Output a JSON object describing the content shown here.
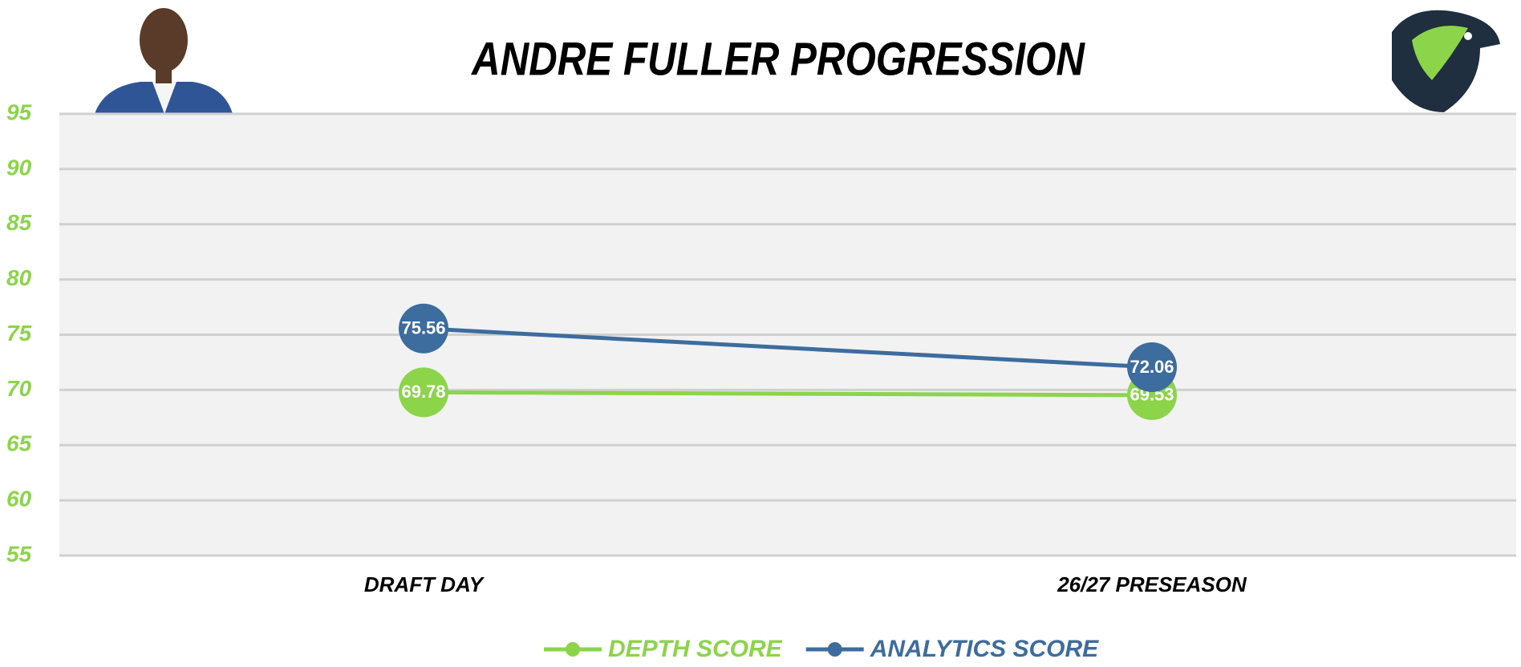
{
  "chart_data": {
    "type": "line",
    "title": "ANDRE FULLER PROGRESSION",
    "categories": [
      "DRAFT DAY",
      "26/27 PRESEASON"
    ],
    "series": [
      {
        "name": "DEPTH SCORE",
        "color": "#8cd44a",
        "values": [
          69.78,
          69.53
        ]
      },
      {
        "name": "ANALYTICS SCORE",
        "color": "#3d6c9e",
        "values": [
          75.56,
          72.06
        ]
      }
    ],
    "ylim": [
      55,
      95
    ],
    "yticks": [
      55,
      60,
      65,
      70,
      75,
      80,
      85,
      90,
      95
    ],
    "grid": true,
    "legend": "bottom"
  }
}
